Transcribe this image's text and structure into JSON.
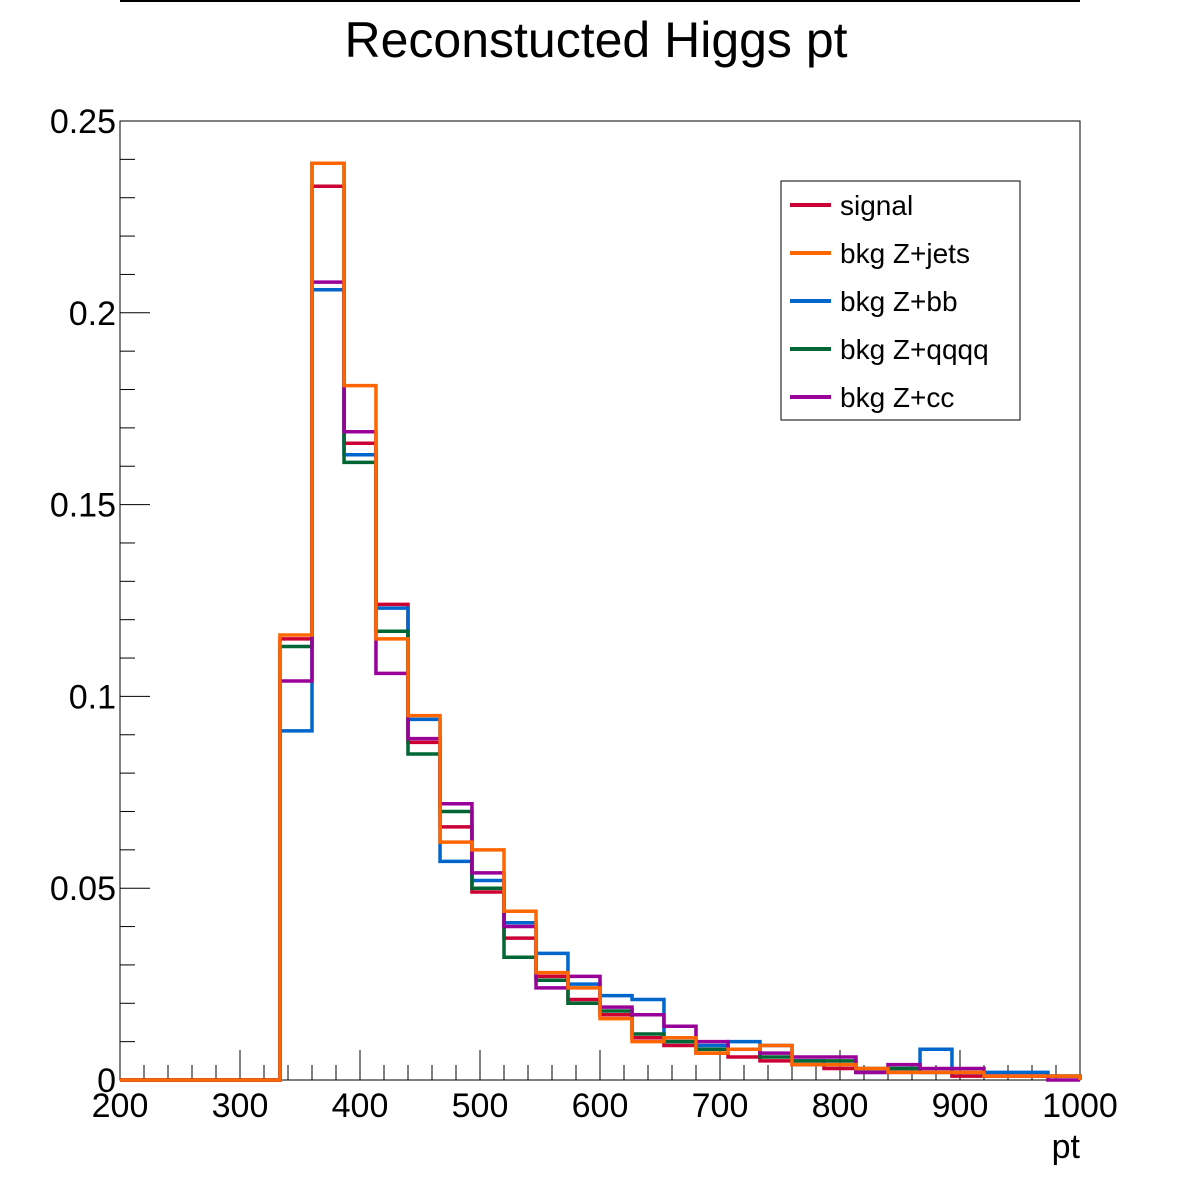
{
  "chart_data": {
    "type": "line",
    "title": "Reconstucted Higgs pt",
    "xlabel": "pt",
    "ylabel": "",
    "xlim": [
      200,
      1000
    ],
    "ylim": [
      0,
      0.25
    ],
    "x_ticks": [
      "200",
      "300",
      "400",
      "500",
      "600",
      "700",
      "800",
      "900",
      "1000"
    ],
    "y_ticks": [
      "0",
      "0.05",
      "0.1",
      "0.15",
      "0.2",
      "0.25"
    ],
    "grid": false,
    "legend_position": "top-right",
    "bin_edges": [
      200,
      226.7,
      253.3,
      280,
      306.7,
      333.3,
      360,
      386.7,
      413.3,
      440,
      466.7,
      493.3,
      520,
      546.7,
      573.3,
      600,
      626.7,
      653.3,
      680,
      706.7,
      733.3,
      760,
      786.7,
      813.3,
      840,
      866.7,
      893.3,
      920,
      946.7,
      973.3,
      1000
    ],
    "series": [
      {
        "name": "signal",
        "color": "#cc0033",
        "values": [
          0,
          0,
          0,
          0,
          0,
          0.115,
          0.233,
          0.166,
          0.124,
          0.088,
          0.066,
          0.049,
          0.037,
          0.027,
          0.021,
          0.017,
          0.011,
          0.009,
          0.007,
          0.006,
          0.005,
          0.004,
          0.003,
          0.002,
          0.002,
          0.002,
          0.001,
          0.001,
          0.001,
          0.001
        ]
      },
      {
        "name": "bkg Z+bb",
        "color": "#0066cc",
        "values": [
          0,
          0,
          0,
          0,
          0,
          0.091,
          0.206,
          0.163,
          0.123,
          0.094,
          0.057,
          0.052,
          0.041,
          0.033,
          0.025,
          0.022,
          0.021,
          0.01,
          0.009,
          0.01,
          0.009,
          0.005,
          0.004,
          0.002,
          0.003,
          0.008,
          0.002,
          0.002,
          0.002,
          0.001
        ]
      },
      {
        "name": "bkg Z+qqqq",
        "color": "#006633",
        "values": [
          0,
          0,
          0,
          0,
          0,
          0.113,
          0.239,
          0.161,
          0.117,
          0.085,
          0.07,
          0.05,
          0.032,
          0.026,
          0.02,
          0.018,
          0.012,
          0.01,
          0.008,
          0.008,
          0.006,
          0.005,
          0.005,
          0.003,
          0.003,
          0.002,
          0.002,
          0.001,
          0.001,
          0.001
        ]
      },
      {
        "name": "bkg Z+cc",
        "color": "#990099",
        "values": [
          0,
          0,
          0,
          0,
          0,
          0.104,
          0.208,
          0.169,
          0.106,
          0.089,
          0.072,
          0.054,
          0.04,
          0.024,
          0.027,
          0.019,
          0.017,
          0.014,
          0.01,
          0.008,
          0.007,
          0.006,
          0.006,
          0.002,
          0.004,
          0.003,
          0.003,
          0.001,
          0.001,
          0.0
        ]
      },
      {
        "name": "bkg Z+jets",
        "color": "#ff6600",
        "values": [
          0,
          0,
          0,
          0,
          0,
          0.116,
          0.239,
          0.181,
          0.115,
          0.095,
          0.062,
          0.06,
          0.044,
          0.028,
          0.024,
          0.016,
          0.01,
          0.011,
          0.007,
          0.008,
          0.009,
          0.004,
          0.004,
          0.003,
          0.002,
          0.002,
          0.002,
          0.001,
          0.001,
          0.001
        ]
      }
    ],
    "legend_order": [
      "signal",
      "bkg Z+jets",
      "bkg Z+bb",
      "bkg Z+qqqq",
      "bkg Z+cc"
    ]
  }
}
